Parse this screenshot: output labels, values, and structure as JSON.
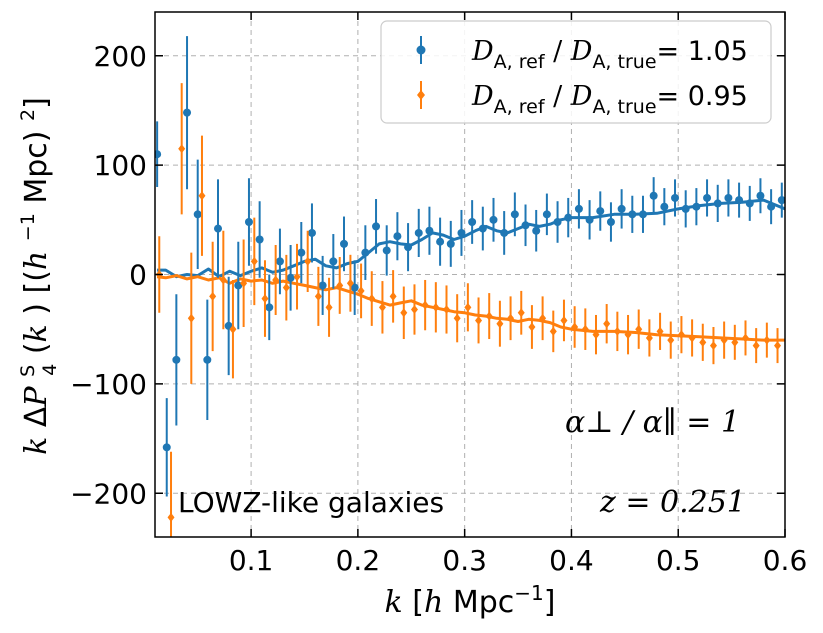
{
  "chart_data": {
    "type": "scatter",
    "xlabel": "k [h Mpc^-1]",
    "ylabel": "k ΔP4S(k) [(h^-1 Mpc)^2]",
    "xlim": [
      0.01,
      0.6
    ],
    "ylim": [
      -240,
      240
    ],
    "xticks": [
      0.1,
      0.2,
      0.3,
      0.4,
      0.5,
      0.6
    ],
    "xtick_labels": [
      "0.1",
      "0.2",
      "0.3",
      "0.4",
      "0.5",
      "0.6"
    ],
    "yticks": [
      -200,
      -100,
      0,
      100,
      200
    ],
    "ytick_labels": [
      "−200",
      "−100",
      "0",
      "100",
      "200"
    ],
    "grid": true,
    "legend_position": "top-right",
    "annotations": {
      "ratio": "α⊥ / α∥ = 1",
      "sample": "LOWZ-like galaxies",
      "redshift": "z = 0.251"
    },
    "series": [
      {
        "name": "D_A,ref / D_A,true = 1.05",
        "color": "#1f77b4",
        "marker": "circle",
        "points": [
          {
            "x": 0.012,
            "y": 110,
            "err": 30
          },
          {
            "x": 0.021,
            "y": -158,
            "err": 45
          },
          {
            "x": 0.03,
            "y": -78,
            "err": 60
          },
          {
            "x": 0.04,
            "y": 148,
            "err": 70
          },
          {
            "x": 0.05,
            "y": 55,
            "err": 50
          },
          {
            "x": 0.059,
            "y": -78,
            "err": 55
          },
          {
            "x": 0.069,
            "y": 42,
            "err": 45
          },
          {
            "x": 0.079,
            "y": -47,
            "err": 45
          },
          {
            "x": 0.088,
            "y": -10,
            "err": 40
          },
          {
            "x": 0.098,
            "y": 48,
            "err": 40
          },
          {
            "x": 0.108,
            "y": 32,
            "err": 35
          },
          {
            "x": 0.117,
            "y": -30,
            "err": 30
          },
          {
            "x": 0.127,
            "y": 12,
            "err": 30
          },
          {
            "x": 0.137,
            "y": -3,
            "err": 30
          },
          {
            "x": 0.147,
            "y": 20,
            "err": 28
          },
          {
            "x": 0.157,
            "y": 38,
            "err": 27
          },
          {
            "x": 0.167,
            "y": -10,
            "err": 27
          },
          {
            "x": 0.177,
            "y": 12,
            "err": 25
          },
          {
            "x": 0.187,
            "y": 28,
            "err": 25
          },
          {
            "x": 0.197,
            "y": -12,
            "err": 25
          },
          {
            "x": 0.207,
            "y": 20,
            "err": 25
          },
          {
            "x": 0.217,
            "y": 44,
            "err": 25
          },
          {
            "x": 0.227,
            "y": 22,
            "err": 23
          },
          {
            "x": 0.237,
            "y": 35,
            "err": 22
          },
          {
            "x": 0.247,
            "y": 25,
            "err": 22
          },
          {
            "x": 0.257,
            "y": 38,
            "err": 22
          },
          {
            "x": 0.267,
            "y": 40,
            "err": 22
          },
          {
            "x": 0.277,
            "y": 30,
            "err": 22
          },
          {
            "x": 0.287,
            "y": 28,
            "err": 21
          },
          {
            "x": 0.297,
            "y": 38,
            "err": 21
          },
          {
            "x": 0.307,
            "y": 48,
            "err": 20
          },
          {
            "x": 0.317,
            "y": 42,
            "err": 20
          },
          {
            "x": 0.327,
            "y": 50,
            "err": 20
          },
          {
            "x": 0.337,
            "y": 38,
            "err": 20
          },
          {
            "x": 0.347,
            "y": 55,
            "err": 20
          },
          {
            "x": 0.357,
            "y": 45,
            "err": 19
          },
          {
            "x": 0.367,
            "y": 40,
            "err": 19
          },
          {
            "x": 0.377,
            "y": 55,
            "err": 19
          },
          {
            "x": 0.387,
            "y": 48,
            "err": 19
          },
          {
            "x": 0.397,
            "y": 52,
            "err": 18
          },
          {
            "x": 0.407,
            "y": 60,
            "err": 18
          },
          {
            "x": 0.417,
            "y": 50,
            "err": 18
          },
          {
            "x": 0.427,
            "y": 58,
            "err": 18
          },
          {
            "x": 0.437,
            "y": 48,
            "err": 18
          },
          {
            "x": 0.447,
            "y": 60,
            "err": 18
          },
          {
            "x": 0.457,
            "y": 55,
            "err": 17
          },
          {
            "x": 0.467,
            "y": 55,
            "err": 17
          },
          {
            "x": 0.477,
            "y": 72,
            "err": 17
          },
          {
            "x": 0.487,
            "y": 62,
            "err": 17
          },
          {
            "x": 0.497,
            "y": 70,
            "err": 17
          },
          {
            "x": 0.507,
            "y": 60,
            "err": 17
          },
          {
            "x": 0.517,
            "y": 62,
            "err": 17
          },
          {
            "x": 0.527,
            "y": 70,
            "err": 17
          },
          {
            "x": 0.537,
            "y": 65,
            "err": 17
          },
          {
            "x": 0.547,
            "y": 70,
            "err": 17
          },
          {
            "x": 0.557,
            "y": 68,
            "err": 16
          },
          {
            "x": 0.567,
            "y": 65,
            "err": 16
          },
          {
            "x": 0.577,
            "y": 72,
            "err": 16
          },
          {
            "x": 0.587,
            "y": 62,
            "err": 16
          },
          {
            "x": 0.597,
            "y": 68,
            "err": 16
          }
        ],
        "model": [
          [
            0.012,
            4
          ],
          [
            0.02,
            4
          ],
          [
            0.03,
            -2
          ],
          [
            0.04,
            0
          ],
          [
            0.05,
            -1
          ],
          [
            0.06,
            5
          ],
          [
            0.07,
            -2
          ],
          [
            0.08,
            3
          ],
          [
            0.09,
            -1
          ],
          [
            0.1,
            3
          ],
          [
            0.11,
            6
          ],
          [
            0.12,
            2
          ],
          [
            0.13,
            4
          ],
          [
            0.14,
            8
          ],
          [
            0.15,
            12
          ],
          [
            0.16,
            14
          ],
          [
            0.17,
            8
          ],
          [
            0.18,
            6
          ],
          [
            0.19,
            10
          ],
          [
            0.2,
            12
          ],
          [
            0.21,
            20
          ],
          [
            0.22,
            28
          ],
          [
            0.23,
            30
          ],
          [
            0.24,
            28
          ],
          [
            0.25,
            27
          ],
          [
            0.26,
            32
          ],
          [
            0.27,
            38
          ],
          [
            0.28,
            36
          ],
          [
            0.29,
            32
          ],
          [
            0.3,
            35
          ],
          [
            0.31,
            40
          ],
          [
            0.32,
            44
          ],
          [
            0.33,
            40
          ],
          [
            0.34,
            38
          ],
          [
            0.35,
            42
          ],
          [
            0.36,
            46
          ],
          [
            0.37,
            44
          ],
          [
            0.38,
            46
          ],
          [
            0.39,
            50
          ],
          [
            0.4,
            52
          ],
          [
            0.42,
            52
          ],
          [
            0.44,
            55
          ],
          [
            0.46,
            55
          ],
          [
            0.48,
            56
          ],
          [
            0.5,
            60
          ],
          [
            0.52,
            63
          ],
          [
            0.54,
            65
          ],
          [
            0.56,
            66
          ],
          [
            0.58,
            68
          ],
          [
            0.6,
            60
          ]
        ]
      },
      {
        "name": "D_A,ref / D_A,true = 0.95",
        "color": "#ff7f0e",
        "marker": "diamond",
        "points": [
          {
            "x": 0.014,
            "y": 0,
            "err": 35
          },
          {
            "x": 0.025,
            "y": -222,
            "err": 60
          },
          {
            "x": 0.035,
            "y": 115,
            "err": 60
          },
          {
            "x": 0.044,
            "y": -40,
            "err": 60
          },
          {
            "x": 0.054,
            "y": 72,
            "err": 55
          },
          {
            "x": 0.064,
            "y": -20,
            "err": 50
          },
          {
            "x": 0.074,
            "y": -5,
            "err": 45
          },
          {
            "x": 0.083,
            "y": -50,
            "err": 45
          },
          {
            "x": 0.093,
            "y": -8,
            "err": 40
          },
          {
            "x": 0.103,
            "y": 12,
            "err": 40
          },
          {
            "x": 0.113,
            "y": -22,
            "err": 35
          },
          {
            "x": 0.123,
            "y": -5,
            "err": 32
          },
          {
            "x": 0.133,
            "y": -12,
            "err": 30
          },
          {
            "x": 0.143,
            "y": -2,
            "err": 30
          },
          {
            "x": 0.153,
            "y": 12,
            "err": 28
          },
          {
            "x": 0.163,
            "y": -20,
            "err": 27
          },
          {
            "x": 0.173,
            "y": -30,
            "err": 27
          },
          {
            "x": 0.183,
            "y": -10,
            "err": 26
          },
          {
            "x": 0.193,
            "y": -8,
            "err": 26
          },
          {
            "x": 0.203,
            "y": -15,
            "err": 25
          },
          {
            "x": 0.213,
            "y": -22,
            "err": 25
          },
          {
            "x": 0.223,
            "y": -30,
            "err": 24
          },
          {
            "x": 0.233,
            "y": -20,
            "err": 24
          },
          {
            "x": 0.243,
            "y": -35,
            "err": 24
          },
          {
            "x": 0.253,
            "y": -32,
            "err": 23
          },
          {
            "x": 0.263,
            "y": -28,
            "err": 23
          },
          {
            "x": 0.273,
            "y": -30,
            "err": 23
          },
          {
            "x": 0.283,
            "y": -32,
            "err": 22
          },
          {
            "x": 0.293,
            "y": -40,
            "err": 22
          },
          {
            "x": 0.303,
            "y": -30,
            "err": 22
          },
          {
            "x": 0.313,
            "y": -42,
            "err": 21
          },
          {
            "x": 0.323,
            "y": -38,
            "err": 21
          },
          {
            "x": 0.333,
            "y": -45,
            "err": 21
          },
          {
            "x": 0.343,
            "y": -40,
            "err": 20
          },
          {
            "x": 0.353,
            "y": -35,
            "err": 20
          },
          {
            "x": 0.363,
            "y": -48,
            "err": 20
          },
          {
            "x": 0.373,
            "y": -40,
            "err": 20
          },
          {
            "x": 0.383,
            "y": -52,
            "err": 19
          },
          {
            "x": 0.393,
            "y": -42,
            "err": 19
          },
          {
            "x": 0.403,
            "y": -48,
            "err": 19
          },
          {
            "x": 0.413,
            "y": -50,
            "err": 19
          },
          {
            "x": 0.423,
            "y": -55,
            "err": 18
          },
          {
            "x": 0.433,
            "y": -45,
            "err": 18
          },
          {
            "x": 0.443,
            "y": -52,
            "err": 18
          },
          {
            "x": 0.453,
            "y": -55,
            "err": 18
          },
          {
            "x": 0.463,
            "y": -50,
            "err": 18
          },
          {
            "x": 0.473,
            "y": -58,
            "err": 17
          },
          {
            "x": 0.483,
            "y": -52,
            "err": 17
          },
          {
            "x": 0.493,
            "y": -60,
            "err": 17
          },
          {
            "x": 0.503,
            "y": -55,
            "err": 17
          },
          {
            "x": 0.513,
            "y": -58,
            "err": 17
          },
          {
            "x": 0.523,
            "y": -62,
            "err": 17
          },
          {
            "x": 0.533,
            "y": -65,
            "err": 17
          },
          {
            "x": 0.543,
            "y": -60,
            "err": 17
          },
          {
            "x": 0.553,
            "y": -62,
            "err": 16
          },
          {
            "x": 0.563,
            "y": -58,
            "err": 16
          },
          {
            "x": 0.573,
            "y": -65,
            "err": 16
          },
          {
            "x": 0.583,
            "y": -60,
            "err": 16
          },
          {
            "x": 0.593,
            "y": -65,
            "err": 16
          }
        ],
        "model": [
          [
            0.012,
            -2
          ],
          [
            0.02,
            -3
          ],
          [
            0.03,
            -1
          ],
          [
            0.04,
            -4
          ],
          [
            0.05,
            -2
          ],
          [
            0.06,
            -5
          ],
          [
            0.07,
            -3
          ],
          [
            0.08,
            -8
          ],
          [
            0.09,
            -4
          ],
          [
            0.1,
            -6
          ],
          [
            0.11,
            -5
          ],
          [
            0.12,
            -8
          ],
          [
            0.13,
            -6
          ],
          [
            0.14,
            -8
          ],
          [
            0.15,
            -10
          ],
          [
            0.16,
            -12
          ],
          [
            0.17,
            -14
          ],
          [
            0.18,
            -12
          ],
          [
            0.19,
            -15
          ],
          [
            0.2,
            -18
          ],
          [
            0.21,
            -22
          ],
          [
            0.22,
            -25
          ],
          [
            0.23,
            -28
          ],
          [
            0.24,
            -26
          ],
          [
            0.25,
            -24
          ],
          [
            0.26,
            -28
          ],
          [
            0.27,
            -30
          ],
          [
            0.28,
            -32
          ],
          [
            0.29,
            -34
          ],
          [
            0.3,
            -35
          ],
          [
            0.31,
            -37
          ],
          [
            0.32,
            -38
          ],
          [
            0.33,
            -40
          ],
          [
            0.34,
            -41
          ],
          [
            0.35,
            -43
          ],
          [
            0.36,
            -41
          ],
          [
            0.37,
            -42
          ],
          [
            0.38,
            -44
          ],
          [
            0.39,
            -48
          ],
          [
            0.4,
            -50
          ],
          [
            0.42,
            -52
          ],
          [
            0.44,
            -52
          ],
          [
            0.46,
            -53
          ],
          [
            0.48,
            -55
          ],
          [
            0.5,
            -56
          ],
          [
            0.52,
            -57
          ],
          [
            0.54,
            -58
          ],
          [
            0.56,
            -59
          ],
          [
            0.58,
            -60
          ],
          [
            0.6,
            -60
          ]
        ]
      }
    ]
  },
  "legend": {
    "items": [
      {
        "num": "D",
        "num_sub": "A, ref",
        "den": "D",
        "den_sub": "A, true",
        "value": "= 1.05"
      },
      {
        "num": "D",
        "num_sub": "A, ref",
        "den": "D",
        "den_sub": "A, true",
        "value": "= 0.95"
      }
    ]
  }
}
